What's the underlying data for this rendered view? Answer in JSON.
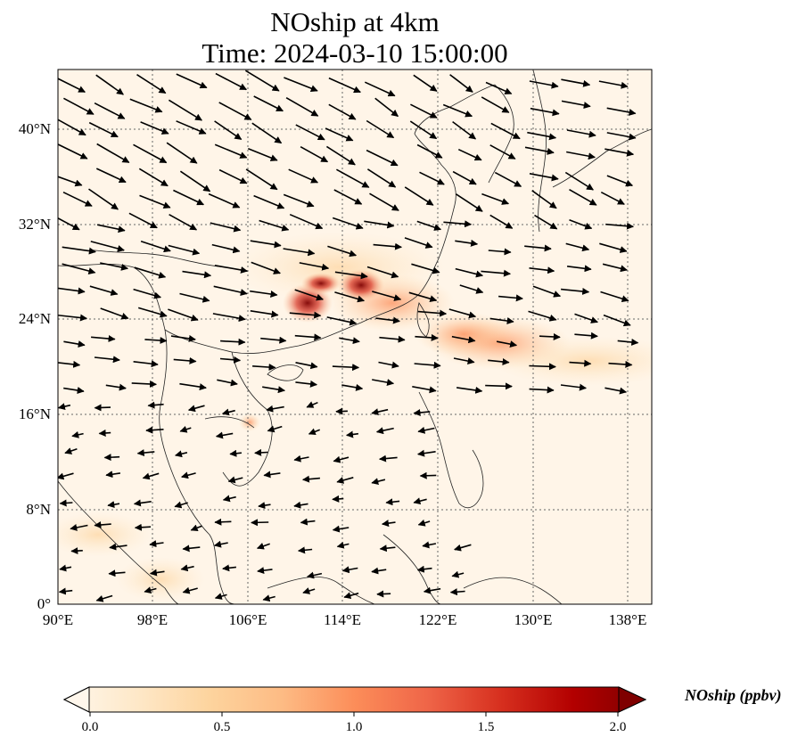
{
  "title": {
    "line1": "NOship at 4km",
    "line2": "Time: 2024-03-10 15:00:00"
  },
  "axes": {
    "x_ticks": [
      "90°E",
      "98°E",
      "106°E",
      "114°E",
      "122°E",
      "130°E",
      "138°E"
    ],
    "y_ticks": [
      "40°N",
      "32°N",
      "24°N",
      "16°N",
      "8°N",
      "0°"
    ],
    "lon_range": [
      90,
      140
    ],
    "lat_range": [
      0,
      45
    ],
    "gridlines": true
  },
  "colorbar": {
    "label": "NOship (ppbv)",
    "ticks": [
      "0.0",
      "0.5",
      "1.0",
      "1.5",
      "2.0"
    ],
    "range": [
      0.0,
      2.0
    ],
    "colormap": "OrRd",
    "extend": "both",
    "colors": [
      "#fff7ec",
      "#fee8c8",
      "#fdd49e",
      "#fdbb84",
      "#fc8d59",
      "#ef6548",
      "#d7301f",
      "#b30000",
      "#7f0000"
    ]
  },
  "concentration_hotspots": [
    {
      "lon": 111,
      "lat": 25,
      "value": 2.0
    },
    {
      "lon": 116,
      "lat": 26.5,
      "value": 1.9
    },
    {
      "lon": 113,
      "lat": 26.5,
      "value": 1.6
    },
    {
      "lon": 119,
      "lat": 24.5,
      "value": 1.2
    },
    {
      "lon": 124,
      "lat": 22,
      "value": 1.0
    },
    {
      "lon": 107,
      "lat": 15.5,
      "value": 0.8
    },
    {
      "lon": 132,
      "lat": 20,
      "value": 0.6
    }
  ],
  "wind_field": "arrows from northwest north of 20°N; from east / northeast over the South China Sea"
}
